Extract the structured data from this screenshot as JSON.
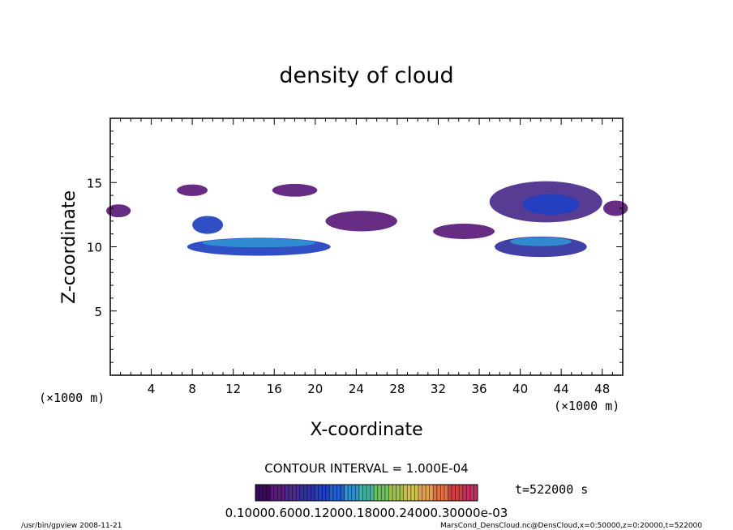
{
  "chart_data": {
    "type": "heatmap",
    "title": "density of cloud",
    "xlabel": "X-coordinate",
    "ylabel": "Z-coordinate",
    "x_unit_left": "(×1000 m)",
    "x_unit_right": "(×1000 m)",
    "xlim": [
      0,
      50
    ],
    "ylim": [
      0,
      20
    ],
    "xticks": [
      "4",
      "8",
      "12",
      "16",
      "20",
      "24",
      "28",
      "32",
      "36",
      "40",
      "44",
      "48"
    ],
    "yticks": [
      "5",
      "10",
      "15"
    ],
    "contour_interval_text": "CONTOUR INTERVAL = 1.000E-04",
    "time_text": "t=522000 s",
    "colorbar_labels": "0.10000.6000.12000.18000.24000.30000e-03",
    "colors": [
      "#3a0a5a",
      "#5a1a7a",
      "#4a2a8a",
      "#3030a0",
      "#2040c0",
      "#2060d0",
      "#3090d0",
      "#40b0a0",
      "#70c060",
      "#a0c050",
      "#d0c050",
      "#e0a050",
      "#e07040",
      "#d04040",
      "#c03060"
    ],
    "regions": [
      {
        "name": "main-band-left",
        "cx": 14.5,
        "cz": 10.0,
        "rx": 7.0,
        "rz": 0.7,
        "level": 4
      },
      {
        "name": "main-band-left-core",
        "cx": 14.5,
        "cz": 10.3,
        "rx": 5.5,
        "rz": 0.35,
        "level": 6
      },
      {
        "name": "left-blob",
        "cx": 9.5,
        "cz": 11.7,
        "rx": 1.5,
        "rz": 0.7,
        "level": 4
      },
      {
        "name": "upper-left-patch",
        "cx": 8.0,
        "cz": 14.4,
        "rx": 1.5,
        "rz": 0.45,
        "level": 1
      },
      {
        "name": "upper-mid-patch",
        "cx": 18.0,
        "cz": 14.4,
        "rx": 2.2,
        "rz": 0.5,
        "level": 1
      },
      {
        "name": "right-upper-cloud",
        "cx": 42.5,
        "cz": 13.5,
        "rx": 5.5,
        "rz": 1.6,
        "level": 2
      },
      {
        "name": "right-upper-core",
        "cx": 43.0,
        "cz": 13.3,
        "rx": 2.8,
        "rz": 0.8,
        "level": 4
      },
      {
        "name": "right-lower-band",
        "cx": 42.0,
        "cz": 10.0,
        "rx": 4.5,
        "rz": 0.8,
        "level": 3
      },
      {
        "name": "right-lower-core",
        "cx": 42.0,
        "cz": 10.4,
        "rx": 3.0,
        "rz": 0.35,
        "level": 6
      },
      {
        "name": "mid-wisps",
        "cx": 24.5,
        "cz": 12.0,
        "rx": 3.5,
        "rz": 0.8,
        "level": 1
      },
      {
        "name": "mid-right-wisps",
        "cx": 34.5,
        "cz": 11.2,
        "rx": 3.0,
        "rz": 0.6,
        "level": 1
      },
      {
        "name": "edge-left",
        "cx": 0.8,
        "cz": 12.8,
        "rx": 1.2,
        "rz": 0.5,
        "level": 1
      },
      {
        "name": "edge-right",
        "cx": 49.3,
        "cz": 13.0,
        "rx": 1.2,
        "rz": 0.6,
        "level": 1
      }
    ]
  },
  "footer": {
    "left": "/usr/bin/gpview  2008-11-21",
    "right": "MarsCond_DensCloud.nc@DensCloud,x=0:50000,z=0:20000,t=522000"
  }
}
